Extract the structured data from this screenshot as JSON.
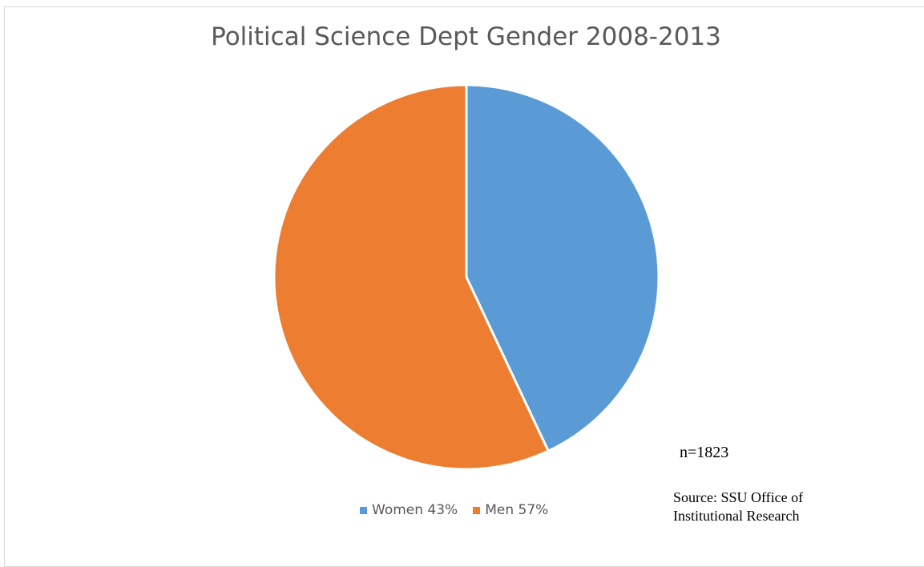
{
  "chart_data": {
    "type": "pie",
    "title": "Political Science Dept Gender 2008-2013",
    "categories": [
      "Women",
      "Men"
    ],
    "values": [
      43,
      57
    ],
    "unit": "%",
    "legend_labels": [
      "Women 43%",
      "Men 57%"
    ],
    "colors": [
      "#5b9bd5",
      "#ed7d31"
    ],
    "legend_position": "bottom",
    "annotations": {
      "n": "n=1823",
      "source_line1": "Source: SSU Office of",
      "source_line2": "Institutional Research"
    }
  }
}
